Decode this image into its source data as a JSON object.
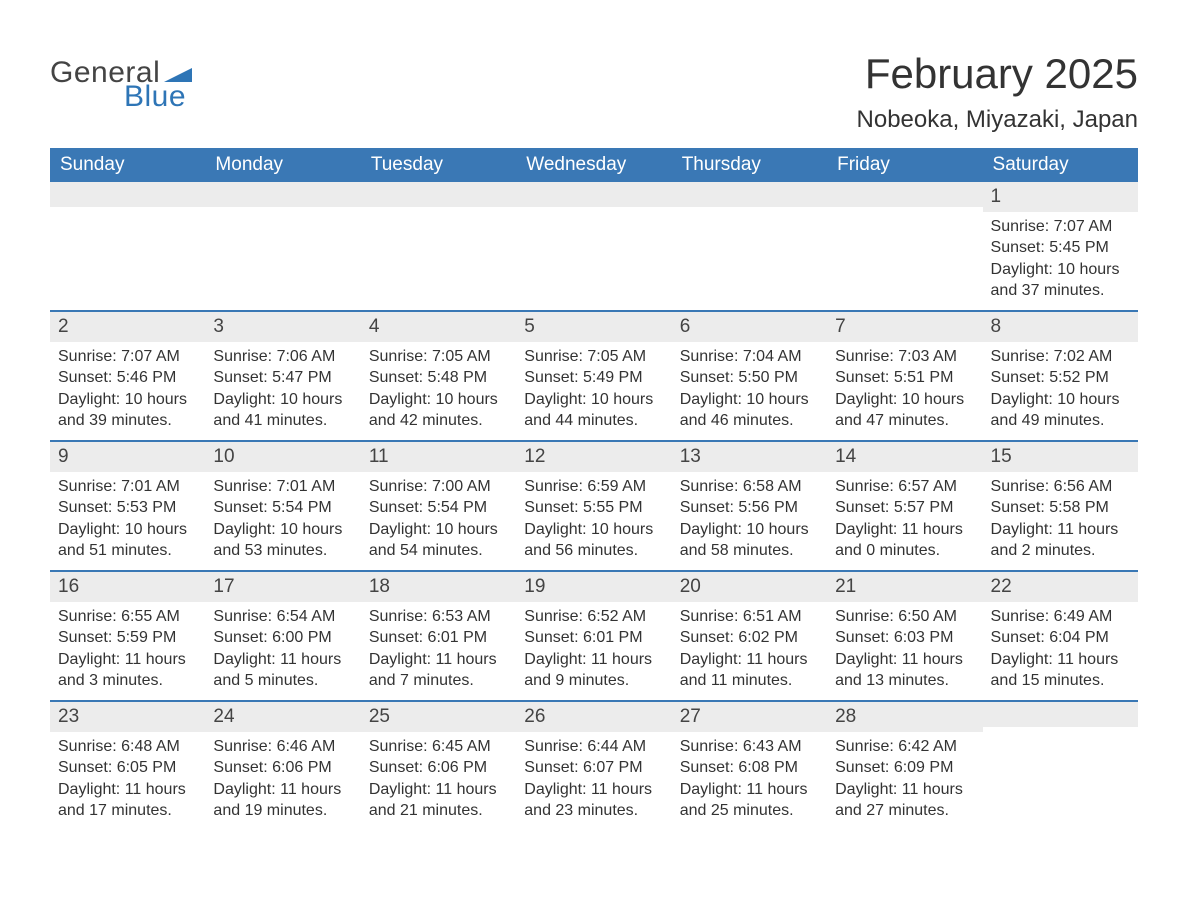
{
  "logo": {
    "text_general": "General",
    "text_blue": "Blue",
    "flag_color": "#2e75b6"
  },
  "title": "February 2025",
  "location": "Nobeoka, Miyazaki, Japan",
  "colors": {
    "header_bg": "#3a78b5",
    "header_text": "#ffffff",
    "row_divider": "#3a78b5",
    "daynum_bg": "#ececec",
    "body_text": "#333333",
    "background": "#ffffff"
  },
  "day_names": [
    "Sunday",
    "Monday",
    "Tuesday",
    "Wednesday",
    "Thursday",
    "Friday",
    "Saturday"
  ],
  "weeks": [
    [
      null,
      null,
      null,
      null,
      null,
      null,
      {
        "n": "1",
        "sunrise": "7:07 AM",
        "sunset": "5:45 PM",
        "daylight": "10 hours and 37 minutes."
      }
    ],
    [
      {
        "n": "2",
        "sunrise": "7:07 AM",
        "sunset": "5:46 PM",
        "daylight": "10 hours and 39 minutes."
      },
      {
        "n": "3",
        "sunrise": "7:06 AM",
        "sunset": "5:47 PM",
        "daylight": "10 hours and 41 minutes."
      },
      {
        "n": "4",
        "sunrise": "7:05 AM",
        "sunset": "5:48 PM",
        "daylight": "10 hours and 42 minutes."
      },
      {
        "n": "5",
        "sunrise": "7:05 AM",
        "sunset": "5:49 PM",
        "daylight": "10 hours and 44 minutes."
      },
      {
        "n": "6",
        "sunrise": "7:04 AM",
        "sunset": "5:50 PM",
        "daylight": "10 hours and 46 minutes."
      },
      {
        "n": "7",
        "sunrise": "7:03 AM",
        "sunset": "5:51 PM",
        "daylight": "10 hours and 47 minutes."
      },
      {
        "n": "8",
        "sunrise": "7:02 AM",
        "sunset": "5:52 PM",
        "daylight": "10 hours and 49 minutes."
      }
    ],
    [
      {
        "n": "9",
        "sunrise": "7:01 AM",
        "sunset": "5:53 PM",
        "daylight": "10 hours and 51 minutes."
      },
      {
        "n": "10",
        "sunrise": "7:01 AM",
        "sunset": "5:54 PM",
        "daylight": "10 hours and 53 minutes."
      },
      {
        "n": "11",
        "sunrise": "7:00 AM",
        "sunset": "5:54 PM",
        "daylight": "10 hours and 54 minutes."
      },
      {
        "n": "12",
        "sunrise": "6:59 AM",
        "sunset": "5:55 PM",
        "daylight": "10 hours and 56 minutes."
      },
      {
        "n": "13",
        "sunrise": "6:58 AM",
        "sunset": "5:56 PM",
        "daylight": "10 hours and 58 minutes."
      },
      {
        "n": "14",
        "sunrise": "6:57 AM",
        "sunset": "5:57 PM",
        "daylight": "11 hours and 0 minutes."
      },
      {
        "n": "15",
        "sunrise": "6:56 AM",
        "sunset": "5:58 PM",
        "daylight": "11 hours and 2 minutes."
      }
    ],
    [
      {
        "n": "16",
        "sunrise": "6:55 AM",
        "sunset": "5:59 PM",
        "daylight": "11 hours and 3 minutes."
      },
      {
        "n": "17",
        "sunrise": "6:54 AM",
        "sunset": "6:00 PM",
        "daylight": "11 hours and 5 minutes."
      },
      {
        "n": "18",
        "sunrise": "6:53 AM",
        "sunset": "6:01 PM",
        "daylight": "11 hours and 7 minutes."
      },
      {
        "n": "19",
        "sunrise": "6:52 AM",
        "sunset": "6:01 PM",
        "daylight": "11 hours and 9 minutes."
      },
      {
        "n": "20",
        "sunrise": "6:51 AM",
        "sunset": "6:02 PM",
        "daylight": "11 hours and 11 minutes."
      },
      {
        "n": "21",
        "sunrise": "6:50 AM",
        "sunset": "6:03 PM",
        "daylight": "11 hours and 13 minutes."
      },
      {
        "n": "22",
        "sunrise": "6:49 AM",
        "sunset": "6:04 PM",
        "daylight": "11 hours and 15 minutes."
      }
    ],
    [
      {
        "n": "23",
        "sunrise": "6:48 AM",
        "sunset": "6:05 PM",
        "daylight": "11 hours and 17 minutes."
      },
      {
        "n": "24",
        "sunrise": "6:46 AM",
        "sunset": "6:06 PM",
        "daylight": "11 hours and 19 minutes."
      },
      {
        "n": "25",
        "sunrise": "6:45 AM",
        "sunset": "6:06 PM",
        "daylight": "11 hours and 21 minutes."
      },
      {
        "n": "26",
        "sunrise": "6:44 AM",
        "sunset": "6:07 PM",
        "daylight": "11 hours and 23 minutes."
      },
      {
        "n": "27",
        "sunrise": "6:43 AM",
        "sunset": "6:08 PM",
        "daylight": "11 hours and 25 minutes."
      },
      {
        "n": "28",
        "sunrise": "6:42 AM",
        "sunset": "6:09 PM",
        "daylight": "11 hours and 27 minutes."
      },
      null
    ]
  ],
  "labels": {
    "sunrise": "Sunrise:",
    "sunset": "Sunset:",
    "daylight": "Daylight:"
  }
}
